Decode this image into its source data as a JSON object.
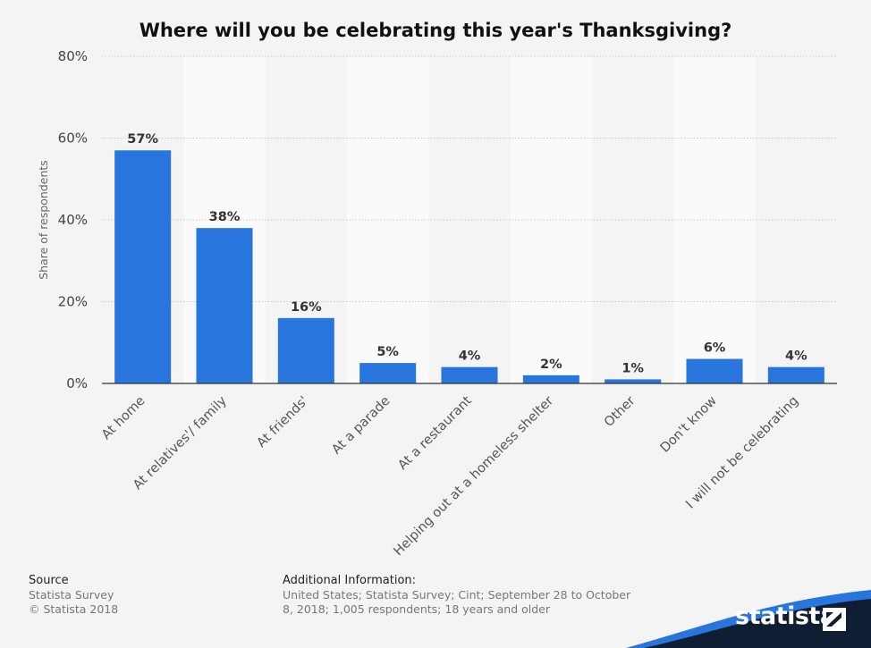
{
  "chart_data": {
    "type": "bar",
    "title": "Where will you be celebrating this year's Thanksgiving?",
    "xlabel": "",
    "ylabel": "Share of respondents",
    "ylim": [
      0,
      80
    ],
    "yticks": [
      0,
      20,
      40,
      60,
      80
    ],
    "ytick_labels": [
      "0%",
      "20%",
      "40%",
      "60%",
      "80%"
    ],
    "grid": true,
    "categories": [
      "At home",
      "At relatives'/ family",
      "At friends'",
      "At a parade",
      "At a restaurant",
      "Helping out at a homeless shelter",
      "Other",
      "Don't know",
      "I will not be celebrating"
    ],
    "values": [
      57,
      38,
      16,
      5,
      4,
      2,
      1,
      6,
      4
    ],
    "value_labels": [
      "57%",
      "38%",
      "16%",
      "5%",
      "4%",
      "2%",
      "1%",
      "6%",
      "4%"
    ],
    "bar_color": "#2876dd"
  },
  "footer": {
    "source_heading": "Source",
    "source_lines": [
      "Statista Survey",
      "© Statista 2018"
    ],
    "info_heading": "Additional Information:",
    "info_text": "United States; Statista Survey; Cint; September 28 to October 8, 2018; 1,005 respondents; 18 years and older"
  },
  "brand": {
    "name": "statista",
    "logo_icon": "statista-flag-icon",
    "dark_color": "#0f1e33",
    "accent_color": "#2876dd"
  }
}
